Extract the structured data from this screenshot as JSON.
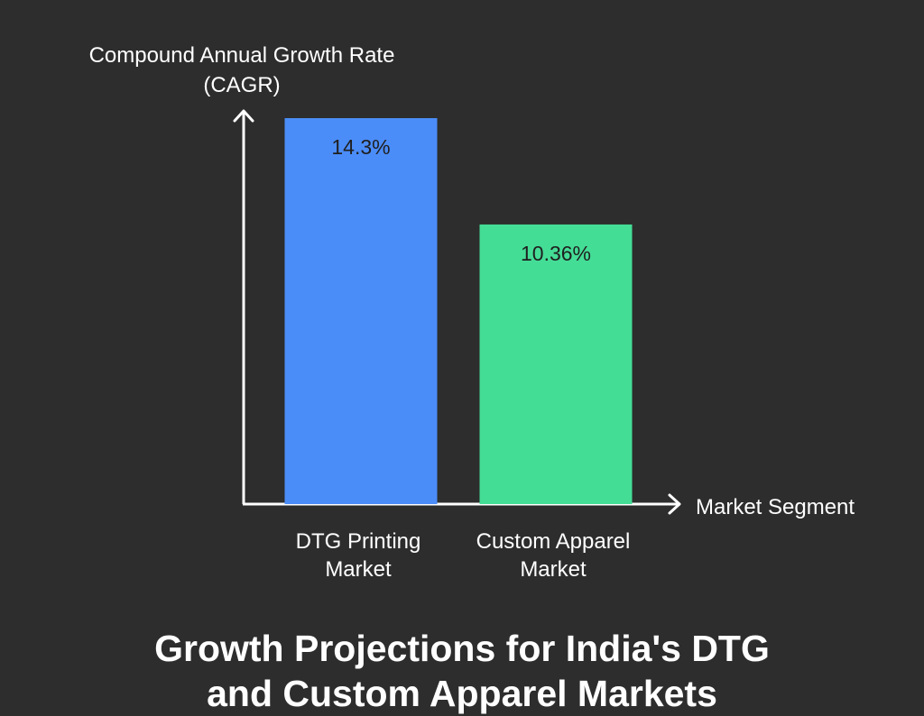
{
  "chart_data": {
    "type": "bar",
    "title_lines": [
      "Growth Projections for India's DTG",
      "and Custom Apparel Markets"
    ],
    "ylabel_lines": [
      "Compound Annual Growth Rate",
      "(CAGR)"
    ],
    "xlabel": "Market Segment",
    "categories": [
      {
        "lines": [
          "DTG Printing",
          "Market"
        ]
      },
      {
        "lines": [
          "Custom Apparel",
          "Market"
        ]
      }
    ],
    "values": [
      14.3,
      10.36
    ],
    "value_labels": [
      "14.3%",
      "10.36%"
    ],
    "ylim": [
      0,
      14.3
    ],
    "colors": [
      "#4b8df8",
      "#44dd96"
    ],
    "grid": false
  }
}
